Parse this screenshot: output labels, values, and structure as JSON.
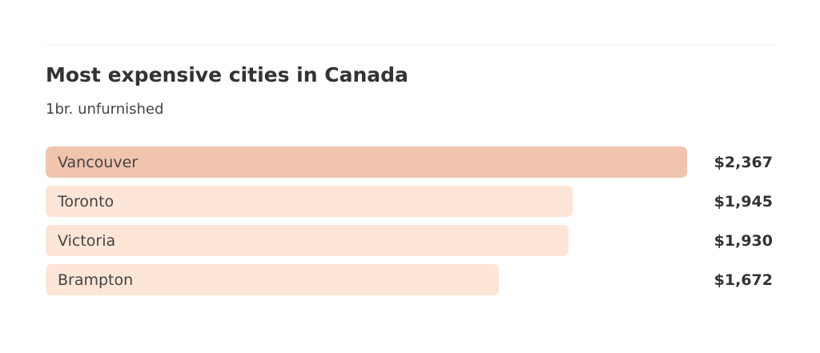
{
  "chart_data": {
    "type": "bar",
    "orientation": "horizontal",
    "title": "Most expensive cities in Canada",
    "subtitle": "1br. unfurnished",
    "categories": [
      "Vancouver",
      "Toronto",
      "Victoria",
      "Brampton"
    ],
    "values": [
      2367,
      1945,
      1930,
      1672
    ],
    "value_labels": [
      "$2,367",
      "$1,945",
      "$1,930",
      "$1,672"
    ],
    "colors": [
      "#f0c4ad",
      "#fde5d7",
      "#fde5d7",
      "#fde5d7"
    ]
  }
}
